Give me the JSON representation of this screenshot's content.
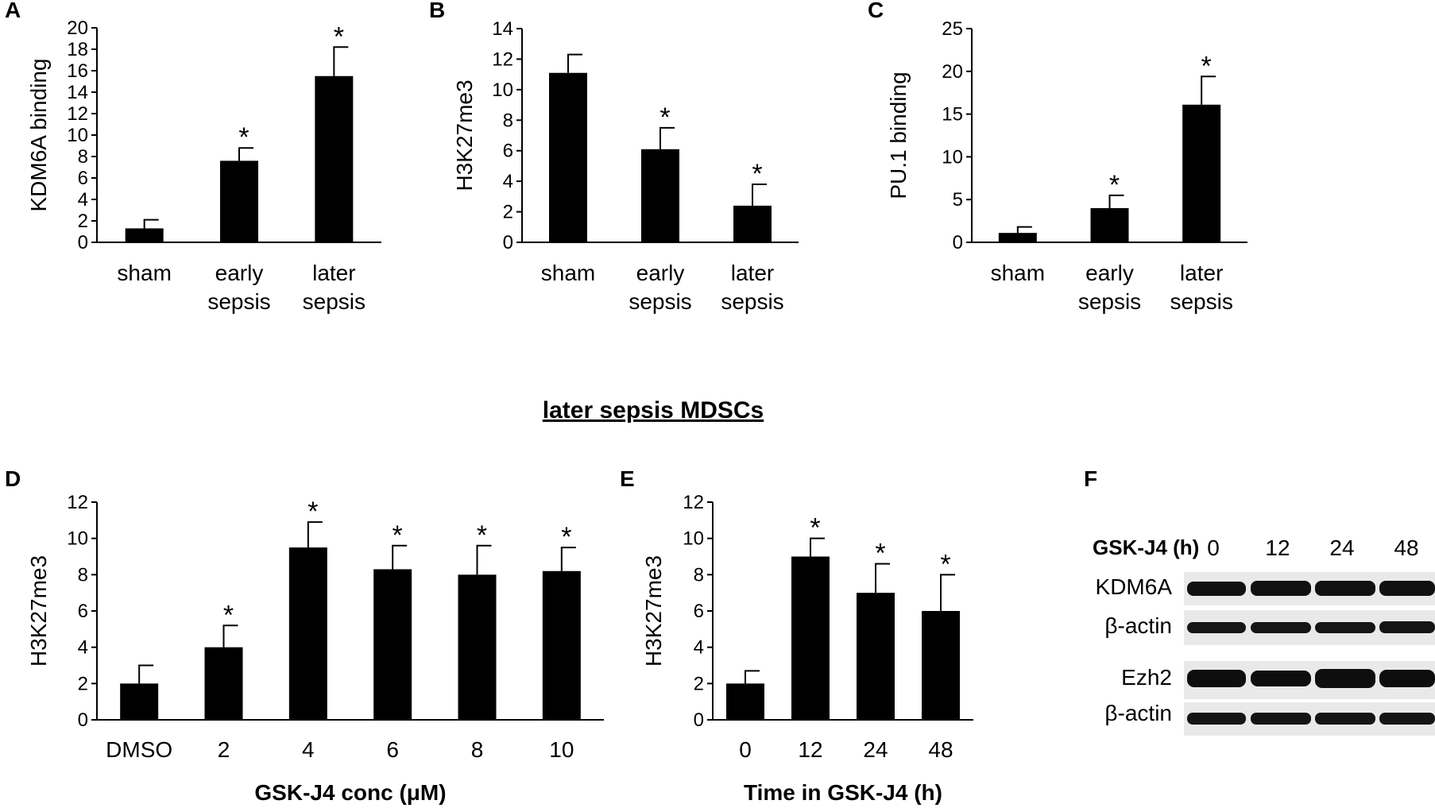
{
  "section_title": "later sepsis MDSCs",
  "colors": {
    "bar": "#000000",
    "axis": "#000000",
    "background": "#ffffff"
  },
  "chart_data": [
    {
      "panel": "A",
      "type": "bar",
      "categories": [
        [
          "sham"
        ],
        [
          "early",
          "sepsis"
        ],
        [
          "later",
          "sepsis"
        ]
      ],
      "values": [
        1.3,
        7.6,
        15.5
      ],
      "errors": [
        0.8,
        1.2,
        2.7
      ],
      "significant": [
        false,
        true,
        true
      ],
      "ylabel": "KDM6A binding",
      "xlabel": "",
      "ylim": [
        0,
        20
      ],
      "yticks": [
        0,
        2,
        4,
        6,
        8,
        10,
        12,
        14,
        16,
        18,
        20
      ],
      "star": "*"
    },
    {
      "panel": "B",
      "type": "bar",
      "categories": [
        [
          "sham"
        ],
        [
          "early",
          "sepsis"
        ],
        [
          "later",
          "sepsis"
        ]
      ],
      "values": [
        11.1,
        6.1,
        2.4
      ],
      "errors": [
        1.2,
        1.4,
        1.4
      ],
      "significant": [
        false,
        true,
        true
      ],
      "ylabel": "H3K27me3",
      "xlabel": "",
      "ylim": [
        0,
        14
      ],
      "yticks": [
        0,
        2,
        4,
        6,
        8,
        10,
        12,
        14
      ],
      "star": "*"
    },
    {
      "panel": "C",
      "type": "bar",
      "categories": [
        [
          "sham"
        ],
        [
          "early",
          "sepsis"
        ],
        [
          "later",
          "sepsis"
        ]
      ],
      "values": [
        1.1,
        4.0,
        16.1
      ],
      "errors": [
        0.7,
        1.5,
        3.3
      ],
      "significant": [
        false,
        true,
        true
      ],
      "ylabel": "PU.1 binding",
      "xlabel": "",
      "ylim": [
        0,
        25
      ],
      "yticks": [
        0,
        5,
        10,
        15,
        20,
        25
      ],
      "star": "*"
    },
    {
      "panel": "D",
      "type": "bar",
      "categories": [
        [
          "DMSO"
        ],
        [
          "2"
        ],
        [
          "4"
        ],
        [
          "6"
        ],
        [
          "8"
        ],
        [
          "10"
        ]
      ],
      "values": [
        2.0,
        4.0,
        9.5,
        8.3,
        8.0,
        8.2
      ],
      "errors": [
        1.0,
        1.2,
        1.4,
        1.3,
        1.6,
        1.3
      ],
      "significant": [
        false,
        true,
        true,
        true,
        true,
        true
      ],
      "ylabel": "H3K27me3",
      "xlabel": "GSK-J4 conc (μM)",
      "ylim": [
        0,
        12
      ],
      "yticks": [
        0,
        2,
        4,
        6,
        8,
        10,
        12
      ],
      "star": "*"
    },
    {
      "panel": "E",
      "type": "bar",
      "categories": [
        [
          "0"
        ],
        [
          "12"
        ],
        [
          "24"
        ],
        [
          "48"
        ]
      ],
      "values": [
        2.0,
        9.0,
        7.0,
        6.0
      ],
      "errors": [
        0.7,
        1.0,
        1.6,
        2.0
      ],
      "significant": [
        false,
        true,
        true,
        true
      ],
      "ylabel": "H3K27me3",
      "xlabel": "Time in GSK-J4 (h)",
      "ylim": [
        0,
        12
      ],
      "yticks": [
        0,
        2,
        4,
        6,
        8,
        10,
        12
      ],
      "star": "*"
    }
  ],
  "blot": {
    "panel": "F",
    "header": "GSK-J4 (h)",
    "lanes": [
      "0",
      "12",
      "24",
      "48"
    ],
    "rows": [
      {
        "label": "KDM6A"
      },
      {
        "label": "β-actin"
      },
      {
        "label": "Ezh2"
      },
      {
        "label": "β-actin"
      }
    ]
  }
}
